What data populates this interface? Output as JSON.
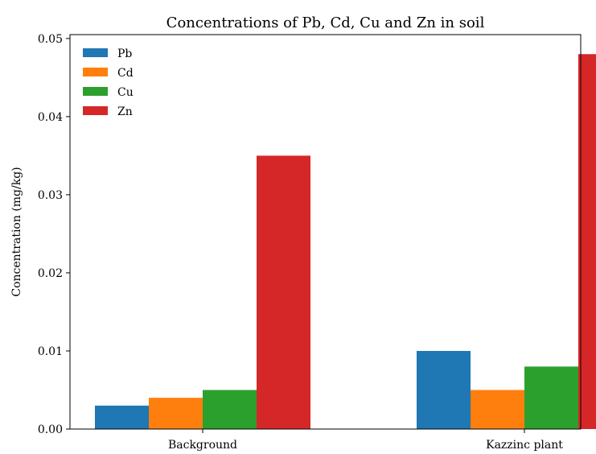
{
  "chart_data": {
    "type": "bar",
    "title": "Concentrations of Pb, Cd, Cu and Zn in soil",
    "xlabel": "",
    "ylabel": "Concentration (mg/kg)",
    "categories": [
      "Background",
      "Kazzinc plant"
    ],
    "series": [
      {
        "name": "Pb",
        "color": "#1f77b4",
        "values": [
          0.003,
          0.01
        ]
      },
      {
        "name": "Cd",
        "color": "#ff7f0e",
        "values": [
          0.004,
          0.005
        ]
      },
      {
        "name": "Cu",
        "color": "#2ca02c",
        "values": [
          0.005,
          0.008
        ]
      },
      {
        "name": "Zn",
        "color": "#d62728",
        "values": [
          0.035,
          0.048
        ]
      }
    ],
    "ylim": [
      0,
      0.0505
    ],
    "yticks": [
      "0.00",
      "0.01",
      "0.02",
      "0.03",
      "0.04",
      "0.05"
    ],
    "ytick_values": [
      0,
      0.01,
      0.02,
      0.03,
      0.04,
      0.05
    ],
    "grid": false,
    "legend_position": "top-left"
  }
}
